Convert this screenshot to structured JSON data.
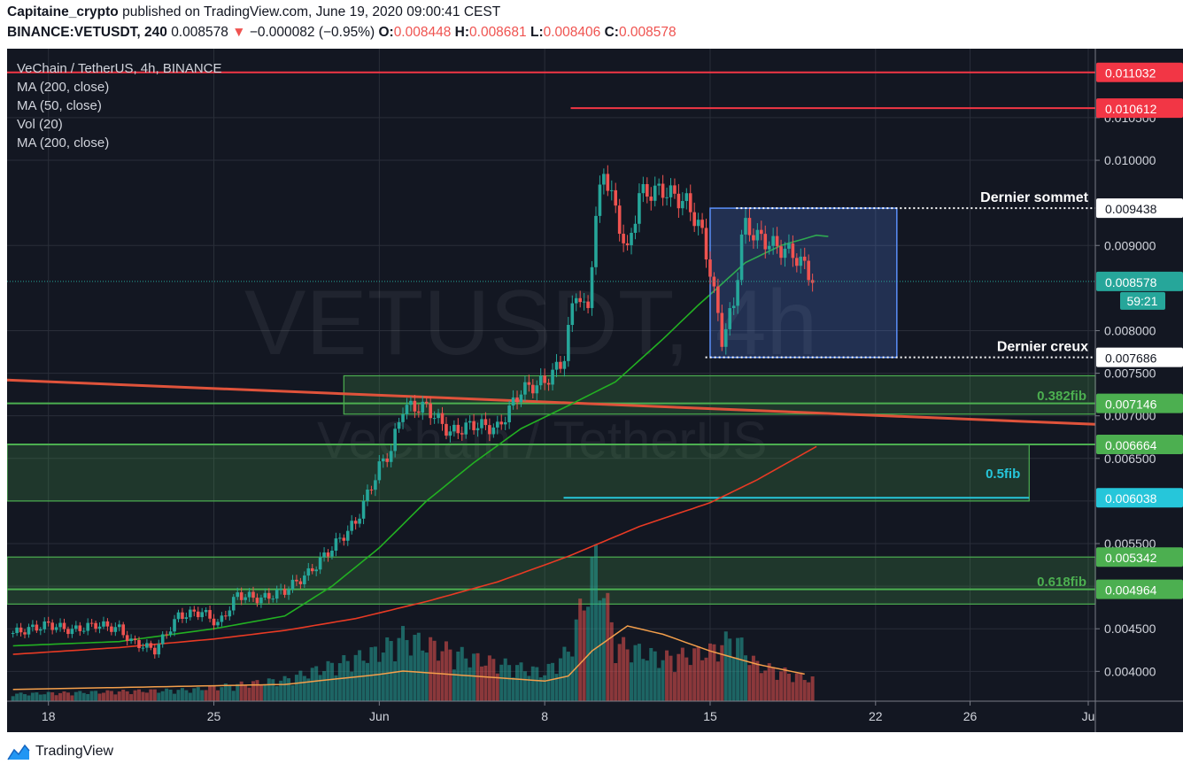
{
  "header": {
    "publisher": "Capitaine_crypto",
    "published_text": "published on TradingView.com, June 19, 2020 09:00:41 CEST",
    "symbol": "BINANCE:VETUSDT, 240",
    "last": "0.008578",
    "change_arrow": "▼",
    "change": "−0.000082 (−0.95%)",
    "o_label": "O:",
    "o_value": "0.008448",
    "h_label": "H:",
    "h_value": "0.008681",
    "l_label": "L:",
    "l_value": "0.008406",
    "c_label": "C:",
    "c_value": "0.008578"
  },
  "legend": {
    "title": "VeChain / TetherUS, 4h, BINANCE",
    "lines": [
      "MA (200, close)",
      "MA (50, close)",
      "Vol (20)",
      "MA (200, close)"
    ]
  },
  "watermark": {
    "big": "VETUSDT, 4h",
    "small": "VeChain / TetherUS"
  },
  "brand": {
    "name": "TradingView",
    "icon": "tradingview-logo-icon"
  },
  "colors": {
    "panel_bg": "#131722",
    "grid": "#2a2e39",
    "axis_text": "#d1d4dc",
    "up": "#26a69a",
    "down": "#ef5350",
    "ma50": "#22b022",
    "ma200": "#e83a24",
    "vol_ma": "#f49f4b",
    "fib_green": "#4caf50",
    "fib_cyan": "#26c6da",
    "box_blue": "#5b8ff9",
    "red_line": "#f23645"
  },
  "chart_data": {
    "type": "candlestick",
    "symbol": "VETUSDT",
    "exchange": "BINANCE",
    "interval": "4h",
    "ylim": [
      0.00365,
      0.01131
    ],
    "y_ticks": [
      0.004,
      0.0045,
      0.005,
      0.0055,
      0.006,
      0.0065,
      0.007,
      0.0075,
      0.008,
      0.009,
      0.01,
      0.0105
    ],
    "y_tick_labels": [
      "0.004000",
      "0.004500",
      "",
      "0.005500",
      "",
      "0.006500",
      "0.007000",
      "0.007500",
      "0.008000",
      "0.009000",
      "0.010000",
      "0.010500"
    ],
    "x_ticks": [
      {
        "label": "18",
        "day": 0
      },
      {
        "label": "25",
        "day": 7
      },
      {
        "label": "Jun",
        "day": 14
      },
      {
        "label": "8",
        "day": 21
      },
      {
        "label": "15",
        "day": 28
      },
      {
        "label": "22",
        "day": 35
      },
      {
        "label": "26",
        "day": 39
      },
      {
        "label": "Ju",
        "day": 44
      }
    ],
    "x_range_days": [
      -1.75,
      44.3
    ],
    "price_path": [
      [
        -1.5,
        0.00445
      ],
      [
        0,
        0.00455
      ],
      [
        1,
        0.00448
      ],
      [
        2,
        0.00455
      ],
      [
        3,
        0.0045
      ],
      [
        3.5,
        0.00435
      ],
      [
        4.5,
        0.00425
      ],
      [
        5.5,
        0.00465
      ],
      [
        6.5,
        0.0047
      ],
      [
        7.2,
        0.00455
      ],
      [
        8,
        0.0049
      ],
      [
        9,
        0.00485
      ],
      [
        10,
        0.00495
      ],
      [
        11,
        0.00515
      ],
      [
        12,
        0.00545
      ],
      [
        13,
        0.00575
      ],
      [
        14,
        0.0064
      ],
      [
        14.5,
        0.0066
      ],
      [
        15,
        0.0071
      ],
      [
        16,
        0.0071
      ],
      [
        17,
        0.0068
      ],
      [
        18,
        0.0069
      ],
      [
        19,
        0.00685
      ],
      [
        20,
        0.0073
      ],
      [
        21,
        0.0074
      ],
      [
        21.8,
        0.00765
      ],
      [
        22.3,
        0.0085
      ],
      [
        22.8,
        0.00815
      ],
      [
        23.1,
        0.0092
      ],
      [
        23.5,
        0.0099
      ],
      [
        24,
        0.0094
      ],
      [
        24.5,
        0.0089
      ],
      [
        25,
        0.0096
      ],
      [
        26,
        0.00965
      ],
      [
        27,
        0.0095
      ],
      [
        27.6,
        0.0092
      ],
      [
        28,
        0.0087
      ],
      [
        28.5,
        0.0079
      ],
      [
        29,
        0.0083
      ],
      [
        29.4,
        0.00925
      ],
      [
        30,
        0.0091
      ],
      [
        30.7,
        0.009
      ],
      [
        31.5,
        0.0089
      ],
      [
        32,
        0.00875
      ],
      [
        32.4,
        0.00858
      ]
    ],
    "last_price": 0.008578,
    "countdown": "59:21",
    "price_labels": [
      {
        "value": 0.011032,
        "text": "0.011032",
        "color": "#f23645"
      },
      {
        "value": 0.010612,
        "text": "0.010612",
        "color": "#f23645"
      },
      {
        "value": 0.009438,
        "text": "0.009438",
        "color": "#ffffff"
      },
      {
        "value": 0.008578,
        "text": "0.008578",
        "color": "#26a69a"
      },
      {
        "value": 0.007686,
        "text": "0.007686",
        "color": "#ffffff"
      },
      {
        "value": 0.007146,
        "text": "0.007146",
        "color": "#4caf50"
      },
      {
        "value": 0.006664,
        "text": "0.006664",
        "color": "#4caf50"
      },
      {
        "value": 0.006038,
        "text": "0.006038",
        "color": "#26c6da"
      },
      {
        "value": 0.005342,
        "text": "0.005342",
        "color": "#4caf50"
      },
      {
        "value": 0.004964,
        "text": "0.004964",
        "color": "#4caf50"
      }
    ],
    "horizontal_lines": [
      {
        "value": 0.011032,
        "from_day": -1.75,
        "color": "#f23645"
      },
      {
        "value": 0.010612,
        "from_day": 22.1,
        "color": "#f23645"
      }
    ],
    "dotted_levels": [
      {
        "value": 0.009438,
        "from_day": 29.1,
        "label": "Dernier sommet"
      },
      {
        "value": 0.007686,
        "from_day": 27.8,
        "label": "Dernier creux"
      }
    ],
    "range_box": {
      "x1_day": 28.0,
      "x2_day": 35.9,
      "top": 0.009438,
      "bottom": 0.007686
    },
    "fib_zones": [
      {
        "top": 0.00747,
        "bottom": 0.00702,
        "from_day": 12.5,
        "label": "0.382fib",
        "label_color": "#4caf50"
      },
      {
        "top": 0.006664,
        "bottom": 0.006,
        "from_day": -1.75,
        "to_day": 41.5,
        "label": "0.5fib",
        "label_color": "#26c6da"
      },
      {
        "top": 0.005342,
        "bottom": 0.00479,
        "from_day": -1.75,
        "label": "0.618fib",
        "label_color": "#4caf50"
      }
    ],
    "fib_lines": [
      {
        "value": 0.007146,
        "from_day": -1.75,
        "color": "#4caf50"
      },
      {
        "value": 0.006664,
        "from_day": -1.75,
        "color": "#4caf50"
      },
      {
        "value": 0.004964,
        "from_day": -1.75,
        "color": "#4caf50"
      },
      {
        "value": 0.006038,
        "from_day": 21.8,
        "to_day": 41.5,
        "color": "#26c6da"
      }
    ],
    "trendline": {
      "from": [
        -1.75,
        0.00742
      ],
      "to": [
        44.3,
        0.0069
      ],
      "color": "#e0533b"
    },
    "ma50": [
      [
        -1.5,
        0.0043
      ],
      [
        3,
        0.00435
      ],
      [
        7,
        0.0045
      ],
      [
        10,
        0.00465
      ],
      [
        12,
        0.005
      ],
      [
        14,
        0.00545
      ],
      [
        16,
        0.006
      ],
      [
        18,
        0.00645
      ],
      [
        20,
        0.00685
      ],
      [
        22,
        0.00712
      ],
      [
        24,
        0.0074
      ],
      [
        26,
        0.0079
      ],
      [
        27.5,
        0.0083
      ],
      [
        28.5,
        0.00855
      ],
      [
        29.5,
        0.0088
      ],
      [
        31,
        0.009
      ],
      [
        32.5,
        0.00912
      ],
      [
        33.2,
        0.0091
      ]
    ],
    "ma200": [
      [
        -1.5,
        0.0042
      ],
      [
        3,
        0.00428
      ],
      [
        7,
        0.00438
      ],
      [
        10,
        0.00448
      ],
      [
        13,
        0.00462
      ],
      [
        16,
        0.00482
      ],
      [
        19,
        0.00505
      ],
      [
        22,
        0.00535
      ],
      [
        25,
        0.0057
      ],
      [
        28,
        0.00598
      ],
      [
        30,
        0.00625
      ],
      [
        32.5,
        0.00664
      ]
    ],
    "volume": {
      "max": 1.0,
      "profile": [
        [
          -1.5,
          0.05
        ],
        [
          6,
          0.08
        ],
        [
          10,
          0.15
        ],
        [
          12,
          0.25
        ],
        [
          14,
          0.35
        ],
        [
          15,
          0.45
        ],
        [
          18,
          0.3
        ],
        [
          21,
          0.2
        ],
        [
          22,
          0.35
        ],
        [
          23.2,
          1.0
        ],
        [
          24,
          0.4
        ],
        [
          26,
          0.3
        ],
        [
          28,
          0.35
        ],
        [
          29,
          0.45
        ],
        [
          30,
          0.25
        ],
        [
          32.4,
          0.15
        ]
      ],
      "ma_profile": [
        [
          -1.5,
          0.07
        ],
        [
          10,
          0.1
        ],
        [
          14,
          0.16
        ],
        [
          15,
          0.18
        ],
        [
          21,
          0.12
        ],
        [
          22,
          0.15
        ],
        [
          23,
          0.3
        ],
        [
          24.5,
          0.45
        ],
        [
          26,
          0.4
        ],
        [
          28,
          0.3
        ],
        [
          30,
          0.22
        ],
        [
          32.4,
          0.15
        ]
      ]
    }
  }
}
